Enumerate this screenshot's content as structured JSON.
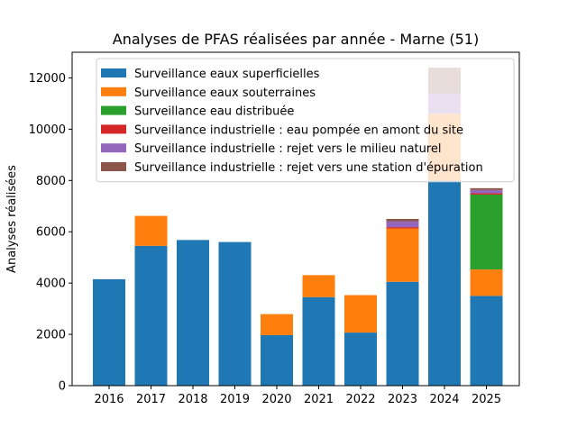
{
  "chart_data": {
    "type": "bar",
    "stacked": true,
    "title": "Analyses de PFAS réalisées par année - Marne (51)",
    "xlabel": "",
    "ylabel": "Analyses réalisées",
    "ylim": [
      0,
      13000
    ],
    "yticks": [
      0,
      2000,
      4000,
      6000,
      8000,
      10000,
      12000
    ],
    "grid": false,
    "legend_position": "top",
    "categories": [
      "2016",
      "2017",
      "2018",
      "2019",
      "2020",
      "2021",
      "2022",
      "2023",
      "2024",
      "2025"
    ],
    "series": [
      {
        "name": "Surveillance eaux superficielles",
        "color": "#1f77b4",
        "values": [
          4150,
          5450,
          5680,
          5600,
          1970,
          3450,
          2070,
          4050,
          8000,
          3500
        ]
      },
      {
        "name": "Surveillance eaux souterraines",
        "color": "#ff7f0e",
        "values": [
          0,
          1170,
          0,
          0,
          820,
          860,
          1460,
          2080,
          2600,
          1030
        ]
      },
      {
        "name": "Surveillance eau distribuée",
        "color": "#2ca02c",
        "values": [
          0,
          0,
          0,
          0,
          0,
          0,
          0,
          0,
          0,
          2920
        ]
      },
      {
        "name": "Surveillance industrielle : eau pompée en amont du site",
        "color": "#d62728",
        "values": [
          0,
          0,
          0,
          0,
          0,
          0,
          0,
          50,
          0,
          50
        ]
      },
      {
        "name": "Surveillance industrielle : rejet vers le milieu naturel",
        "color": "#9467bd",
        "values": [
          0,
          0,
          0,
          0,
          0,
          0,
          0,
          230,
          800,
          130
        ]
      },
      {
        "name": "Surveillance industrielle : rejet vers une station d'épuration",
        "color": "#8c564b",
        "values": [
          0,
          0,
          0,
          0,
          0,
          0,
          0,
          90,
          1000,
          70
        ]
      }
    ]
  }
}
